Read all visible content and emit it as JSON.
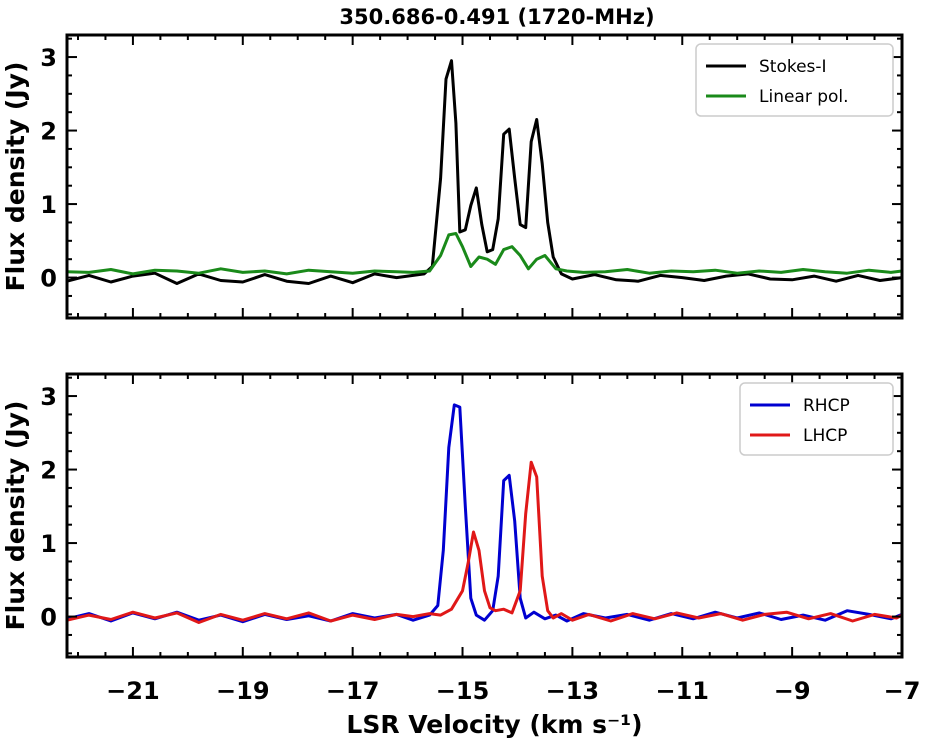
{
  "title": "350.686-0.491 (1720-MHz)",
  "chart_data": [
    {
      "type": "line",
      "panel": "top",
      "ylabel": "Flux density (Jy)",
      "xlabel": "",
      "xlim": [
        -22.2,
        -7.0
      ],
      "ylim": [
        -0.55,
        3.3
      ],
      "xticks": [
        -21,
        -19,
        -17,
        -15,
        -13,
        -11,
        -9,
        -7
      ],
      "yticks": [
        0,
        1,
        2,
        3
      ],
      "legend_position": "top-right",
      "grid": false,
      "series": [
        {
          "name": "Stokes-I",
          "color": "#000000",
          "x": [
            -22.2,
            -21.8,
            -21.4,
            -21.0,
            -20.6,
            -20.2,
            -19.8,
            -19.4,
            -19.0,
            -18.6,
            -18.2,
            -17.8,
            -17.4,
            -17.0,
            -16.6,
            -16.2,
            -15.9,
            -15.7,
            -15.55,
            -15.4,
            -15.3,
            -15.2,
            -15.12,
            -15.05,
            -14.95,
            -14.85,
            -14.75,
            -14.65,
            -14.55,
            -14.45,
            -14.35,
            -14.25,
            -14.15,
            -14.05,
            -13.95,
            -13.85,
            -13.75,
            -13.65,
            -13.55,
            -13.45,
            -13.35,
            -13.2,
            -13.0,
            -12.6,
            -12.2,
            -11.8,
            -11.4,
            -11.0,
            -10.6,
            -10.2,
            -9.8,
            -9.4,
            -9.0,
            -8.6,
            -8.2,
            -7.8,
            -7.4,
            -7.0
          ],
          "y": [
            -0.05,
            0.03,
            -0.06,
            0.02,
            0.06,
            -0.08,
            0.05,
            -0.04,
            -0.06,
            0.04,
            -0.05,
            -0.08,
            0.02,
            -0.07,
            0.05,
            0.0,
            0.03,
            0.05,
            0.15,
            1.35,
            2.7,
            2.95,
            2.1,
            0.62,
            0.65,
            0.98,
            1.22,
            0.72,
            0.35,
            0.38,
            0.8,
            1.95,
            2.02,
            1.35,
            0.72,
            0.68,
            1.85,
            2.15,
            1.55,
            0.75,
            0.28,
            0.05,
            -0.02,
            0.04,
            -0.03,
            -0.05,
            0.03,
            0.0,
            -0.04,
            0.02,
            0.05,
            -0.02,
            -0.03,
            0.02,
            -0.05,
            0.03,
            -0.04,
            0.0
          ]
        },
        {
          "name": "Linear pol.",
          "color": "#1a8a1a",
          "x": [
            -22.2,
            -21.8,
            -21.4,
            -21.0,
            -20.6,
            -20.2,
            -19.8,
            -19.4,
            -19.0,
            -18.6,
            -18.2,
            -17.8,
            -17.4,
            -17.0,
            -16.6,
            -16.2,
            -15.9,
            -15.6,
            -15.4,
            -15.25,
            -15.12,
            -15.0,
            -14.85,
            -14.7,
            -14.55,
            -14.4,
            -14.25,
            -14.1,
            -13.95,
            -13.8,
            -13.65,
            -13.5,
            -13.3,
            -13.1,
            -12.8,
            -12.4,
            -12.0,
            -11.6,
            -11.2,
            -10.8,
            -10.4,
            -10.0,
            -9.6,
            -9.2,
            -8.8,
            -8.4,
            -8.0,
            -7.6,
            -7.2,
            -7.0
          ],
          "y": [
            0.08,
            0.07,
            0.11,
            0.05,
            0.1,
            0.09,
            0.06,
            0.12,
            0.07,
            0.09,
            0.05,
            0.1,
            0.08,
            0.06,
            0.09,
            0.08,
            0.07,
            0.09,
            0.3,
            0.58,
            0.6,
            0.42,
            0.15,
            0.28,
            0.25,
            0.18,
            0.38,
            0.42,
            0.3,
            0.12,
            0.25,
            0.3,
            0.12,
            0.09,
            0.07,
            0.08,
            0.11,
            0.06,
            0.09,
            0.08,
            0.1,
            0.06,
            0.09,
            0.07,
            0.11,
            0.08,
            0.06,
            0.1,
            0.07,
            0.09
          ]
        }
      ]
    },
    {
      "type": "line",
      "panel": "bottom",
      "ylabel": "Flux density (Jy)",
      "xlabel": "LSR Velocity (km s⁻¹)",
      "xlim": [
        -22.2,
        -7.0
      ],
      "ylim": [
        -0.55,
        3.3
      ],
      "xticks": [
        -21,
        -19,
        -17,
        -15,
        -13,
        -11,
        -9,
        -7
      ],
      "yticks": [
        0,
        1,
        2,
        3
      ],
      "legend_position": "top-right",
      "grid": false,
      "series": [
        {
          "name": "RHCP",
          "color": "#0000d0",
          "x": [
            -22.2,
            -21.8,
            -21.4,
            -21.0,
            -20.6,
            -20.2,
            -19.8,
            -19.4,
            -19.0,
            -18.6,
            -18.2,
            -17.8,
            -17.4,
            -17.0,
            -16.6,
            -16.2,
            -15.9,
            -15.6,
            -15.45,
            -15.35,
            -15.25,
            -15.15,
            -15.05,
            -14.95,
            -14.85,
            -14.75,
            -14.6,
            -14.45,
            -14.35,
            -14.25,
            -14.15,
            -14.05,
            -13.95,
            -13.85,
            -13.7,
            -13.5,
            -13.3,
            -13.1,
            -12.8,
            -12.4,
            -12.0,
            -11.6,
            -11.2,
            -10.8,
            -10.4,
            -10.0,
            -9.6,
            -9.2,
            -8.8,
            -8.4,
            -8.0,
            -7.6,
            -7.2,
            -7.0
          ],
          "y": [
            -0.03,
            0.04,
            -0.06,
            0.05,
            -0.03,
            0.06,
            -0.05,
            0.02,
            -0.07,
            0.03,
            -0.04,
            0.01,
            -0.06,
            0.04,
            -0.02,
            0.03,
            -0.05,
            0.02,
            0.15,
            0.9,
            2.3,
            2.88,
            2.85,
            1.5,
            0.25,
            0.02,
            -0.05,
            0.08,
            0.55,
            1.85,
            1.92,
            1.3,
            0.25,
            -0.02,
            0.06,
            -0.03,
            0.02,
            -0.06,
            0.04,
            -0.02,
            0.03,
            -0.05,
            0.04,
            -0.03,
            0.06,
            -0.02,
            0.05,
            -0.04,
            0.02,
            -0.05,
            0.08,
            0.03,
            -0.03,
            0.03
          ]
        },
        {
          "name": "LHCP",
          "color": "#e01818",
          "x": [
            -22.2,
            -21.8,
            -21.4,
            -21.0,
            -20.6,
            -20.2,
            -19.8,
            -19.4,
            -19.0,
            -18.6,
            -18.2,
            -17.8,
            -17.4,
            -17.0,
            -16.6,
            -16.2,
            -15.9,
            -15.6,
            -15.4,
            -15.2,
            -15.0,
            -14.9,
            -14.8,
            -14.7,
            -14.6,
            -14.5,
            -14.4,
            -14.25,
            -14.1,
            -13.95,
            -13.85,
            -13.75,
            -13.65,
            -13.55,
            -13.45,
            -13.35,
            -13.2,
            -13.0,
            -12.7,
            -12.3,
            -11.9,
            -11.5,
            -11.1,
            -10.7,
            -10.3,
            -9.9,
            -9.5,
            -9.1,
            -8.7,
            -8.3,
            -7.9,
            -7.5,
            -7.1,
            -7.0
          ],
          "y": [
            -0.05,
            0.02,
            -0.04,
            0.06,
            -0.02,
            0.05,
            -0.08,
            0.03,
            -0.05,
            0.04,
            -0.03,
            0.05,
            -0.06,
            0.02,
            -0.04,
            0.03,
            0.0,
            0.04,
            0.02,
            0.1,
            0.35,
            0.72,
            1.15,
            0.9,
            0.35,
            0.12,
            0.08,
            0.1,
            0.05,
            0.35,
            1.4,
            2.1,
            1.9,
            0.55,
            0.08,
            -0.02,
            0.04,
            -0.05,
            0.03,
            -0.06,
            0.04,
            -0.03,
            0.05,
            -0.02,
            0.04,
            -0.05,
            0.03,
            0.06,
            -0.03,
            0.04,
            -0.06,
            0.03,
            -0.02,
            0.02
          ]
        }
      ]
    }
  ]
}
